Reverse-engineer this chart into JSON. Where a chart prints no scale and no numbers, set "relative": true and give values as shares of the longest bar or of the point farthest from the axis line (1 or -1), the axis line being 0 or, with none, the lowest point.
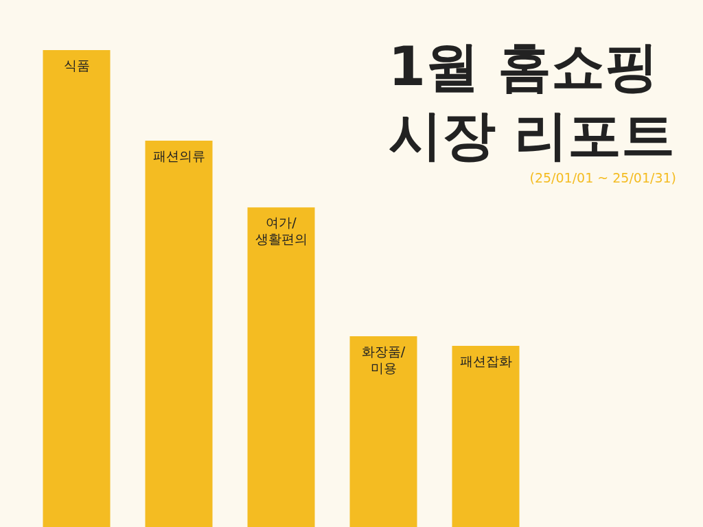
{
  "chart_data": {
    "type": "bar",
    "title": "1월 홈쇼핑 시장 리포트",
    "subtitle": "(25/01/01 ~ 25/01/31)",
    "categories": [
      "식품",
      "패션의류",
      "여가/생활편의",
      "화장품/미용",
      "패션잡화"
    ],
    "values": [
      1,
      0.81,
      0.67,
      0.4,
      0.38
    ],
    "color": "#f4bc22",
    "relative": true,
    "tick_labels": false
  }
}
